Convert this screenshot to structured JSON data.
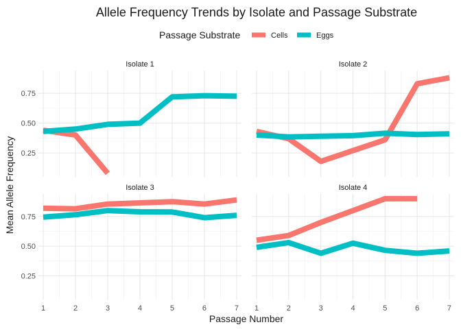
{
  "chart_data": {
    "type": "line",
    "title": "Allele Frequency Trends by Isolate and Passage Substrate",
    "xlabel": "Passage Number",
    "ylabel": "Mean Allele Frequency",
    "x_ticks": [
      1,
      2,
      3,
      4,
      5,
      6,
      7
    ],
    "xlim": [
      0.85,
      7.15
    ],
    "y_ticks": [
      0.25,
      0.5,
      0.75
    ],
    "y_tick_labels": [
      "0.25",
      "0.50",
      "0.75"
    ],
    "ylim": [
      0.05,
      0.94
    ],
    "grid": true,
    "legend": {
      "title": "Passage Substrate",
      "position": "top",
      "entries": [
        "Cells",
        "Eggs"
      ]
    },
    "colors": {
      "Cells": "#F8766D",
      "Eggs": "#00BFC4"
    },
    "panels": [
      {
        "label": "Isolate 1",
        "series": [
          {
            "name": "Cells",
            "x": [
              1,
              2,
              3
            ],
            "y": [
              0.44,
              0.4,
              0.08
            ]
          },
          {
            "name": "Eggs",
            "x": [
              1,
              2,
              3,
              4,
              5,
              6,
              7
            ],
            "y": [
              0.43,
              0.45,
              0.49,
              0.5,
              0.72,
              0.73,
              0.725
            ]
          }
        ]
      },
      {
        "label": "Isolate 2",
        "series": [
          {
            "name": "Cells",
            "x": [
              1,
              2,
              3,
              4,
              5,
              6,
              7
            ],
            "y": [
              0.43,
              0.37,
              0.18,
              0.27,
              0.36,
              0.83,
              0.88
            ]
          },
          {
            "name": "Eggs",
            "x": [
              1,
              2,
              3,
              4,
              5,
              6,
              7
            ],
            "y": [
              0.4,
              0.385,
              0.39,
              0.395,
              0.415,
              0.405,
              0.41
            ]
          }
        ]
      },
      {
        "label": "Isolate 3",
        "series": [
          {
            "name": "Cells",
            "x": [
              1,
              2,
              3,
              4,
              5,
              6,
              7
            ],
            "y": [
              0.82,
              0.815,
              0.855,
              0.865,
              0.875,
              0.855,
              0.89
            ]
          },
          {
            "name": "Eggs",
            "x": [
              1,
              2,
              3,
              4,
              5,
              6,
              7
            ],
            "y": [
              0.745,
              0.765,
              0.8,
              0.79,
              0.788,
              0.74,
              0.76
            ]
          }
        ]
      },
      {
        "label": "Isolate 4",
        "series": [
          {
            "name": "Cells",
            "x": [
              1,
              2,
              3,
              4,
              5,
              6
            ],
            "y": [
              0.55,
              0.59,
              0.7,
              0.8,
              0.9,
              0.9
            ]
          },
          {
            "name": "Eggs",
            "x": [
              1,
              2,
              3,
              4,
              5,
              6,
              7
            ],
            "y": [
              0.49,
              0.53,
              0.44,
              0.525,
              0.465,
              0.44,
              0.46
            ]
          }
        ]
      }
    ]
  }
}
